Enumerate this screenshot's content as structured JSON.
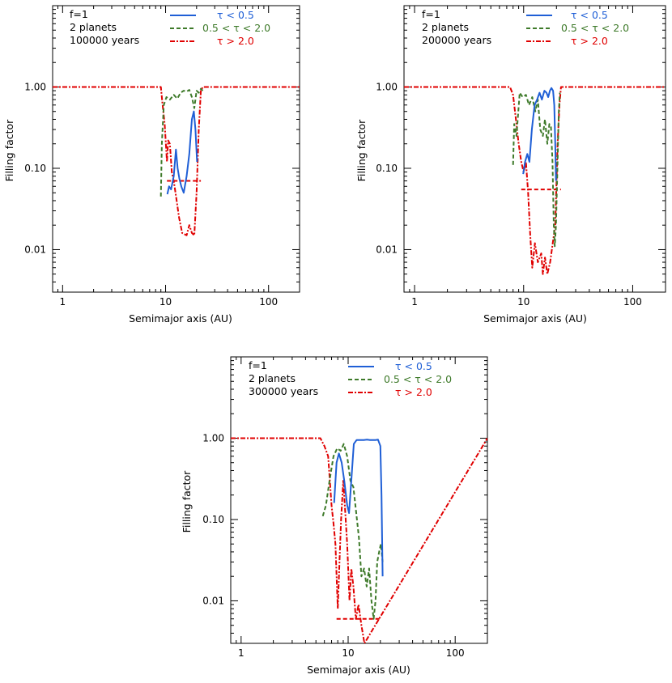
{
  "chart_data": [
    {
      "type": "line",
      "annotation": [
        "f=1",
        "2 planets",
        "100000 years"
      ],
      "xlabel": "Semimajor axis (AU)",
      "ylabel": "Filling factor",
      "xscale": "log",
      "yscale": "log",
      "xlim": [
        0.8,
        200
      ],
      "ylim": [
        0.003,
        10
      ],
      "xticks": [
        {
          "v": 1,
          "label": "1"
        },
        {
          "v": 10,
          "label": "10"
        },
        {
          "v": 100,
          "label": "100"
        }
      ],
      "yticks": [
        {
          "v": 1,
          "label": "1.00"
        },
        {
          "v": 0.1,
          "label": "0.10"
        },
        {
          "v": 0.01,
          "label": "0.01"
        }
      ],
      "legend": {
        "position": "top-right",
        "entries": [
          {
            "name": "τ < 0.5",
            "color": "#1f5fd6",
            "style": "solid"
          },
          {
            "name": "0.5 < τ < 2.0",
            "color": "#3e7a2a",
            "style": "dashed"
          },
          {
            "name": "τ > 2.0",
            "color": "#e00000",
            "style": "dashdot"
          }
        ]
      },
      "series": [
        {
          "name": "τ > 2.0",
          "color": "#e00000",
          "style": "dashdot",
          "points": [
            [
              0.8,
              1
            ],
            [
              9.0,
              1
            ],
            [
              9.3,
              0.65
            ],
            [
              9.8,
              0.35
            ],
            [
              10.3,
              0.12
            ],
            [
              10.6,
              0.22
            ],
            [
              11.0,
              0.2
            ],
            [
              11.5,
              0.09
            ],
            [
              12,
              0.07
            ],
            [
              12.8,
              0.04
            ],
            [
              13.5,
              0.025
            ],
            [
              14.5,
              0.016
            ],
            [
              16,
              0.015
            ],
            [
              17,
              0.02
            ],
            [
              18,
              0.016
            ],
            [
              19,
              0.015
            ],
            [
              20,
              0.05
            ],
            [
              21,
              0.3
            ],
            [
              22,
              0.9
            ],
            [
              23,
              1
            ],
            [
              200,
              1
            ]
          ]
        },
        {
          "name": "τ > 2.0 (threshold)",
          "color": "#e00000",
          "style": "dashed",
          "points": [
            [
              10.3,
              0.07
            ],
            [
              22,
              0.07
            ]
          ]
        },
        {
          "name": "0.5 < τ < 2.0",
          "color": "#3e7a2a",
          "style": "dashed",
          "points": [
            [
              9.0,
              0.045
            ],
            [
              9.2,
              0.2
            ],
            [
              9.6,
              0.6
            ],
            [
              10.2,
              0.75
            ],
            [
              11,
              0.7
            ],
            [
              12,
              0.8
            ],
            [
              13,
              0.72
            ],
            [
              14,
              0.85
            ],
            [
              15,
              0.9
            ],
            [
              16,
              0.88
            ],
            [
              17,
              0.92
            ],
            [
              18,
              0.75
            ],
            [
              19,
              0.55
            ],
            [
              20,
              0.9
            ],
            [
              21,
              0.85
            ],
            [
              22,
              0.95
            ],
            [
              23,
              0.9
            ]
          ]
        },
        {
          "name": "τ < 0.5",
          "color": "#1f5fd6",
          "style": "solid",
          "points": [
            [
              10.4,
              0.048
            ],
            [
              10.8,
              0.06
            ],
            [
              11.3,
              0.055
            ],
            [
              12,
              0.08
            ],
            [
              12.6,
              0.17
            ],
            [
              13.1,
              0.1
            ],
            [
              13.6,
              0.075
            ],
            [
              14.2,
              0.06
            ],
            [
              15,
              0.05
            ],
            [
              16,
              0.08
            ],
            [
              17,
              0.15
            ],
            [
              18,
              0.4
            ],
            [
              18.8,
              0.5
            ],
            [
              19.5,
              0.3
            ],
            [
              20.2,
              0.12
            ]
          ]
        }
      ]
    },
    {
      "type": "line",
      "annotation": [
        "f=1",
        "2 planets",
        "200000 years"
      ],
      "xlabel": "Semimajor axis (AU)",
      "ylabel": "Filling factor",
      "xscale": "log",
      "yscale": "log",
      "xlim": [
        0.8,
        200
      ],
      "ylim": [
        0.003,
        10
      ],
      "xticks": [
        {
          "v": 1,
          "label": "1"
        },
        {
          "v": 10,
          "label": "10"
        },
        {
          "v": 100,
          "label": "100"
        }
      ],
      "yticks": [
        {
          "v": 1,
          "label": "1.00"
        },
        {
          "v": 0.1,
          "label": "0.10"
        },
        {
          "v": 0.01,
          "label": "0.01"
        }
      ],
      "legend": {
        "position": "top-right",
        "entries": [
          {
            "name": "τ < 0.5",
            "color": "#1f5fd6",
            "style": "solid"
          },
          {
            "name": "0.5 < τ < 2.0",
            "color": "#3e7a2a",
            "style": "dashed"
          },
          {
            "name": "τ > 2.0",
            "color": "#e00000",
            "style": "dashdot"
          }
        ]
      },
      "series": [
        {
          "name": "τ > 2.0",
          "color": "#e00000",
          "style": "dashdot",
          "points": [
            [
              0.8,
              1
            ],
            [
              7.5,
              1
            ],
            [
              8.0,
              0.8
            ],
            [
              8.5,
              0.4
            ],
            [
              9.0,
              0.2
            ],
            [
              9.5,
              0.12
            ],
            [
              10.0,
              0.09
            ],
            [
              10.5,
              0.12
            ],
            [
              11.0,
              0.05
            ],
            [
              11.5,
              0.015
            ],
            [
              12.0,
              0.006
            ],
            [
              12.7,
              0.012
            ],
            [
              13.5,
              0.007
            ],
            [
              14.5,
              0.009
            ],
            [
              15,
              0.005
            ],
            [
              15.7,
              0.008
            ],
            [
              16.5,
              0.005
            ],
            [
              17.5,
              0.007
            ],
            [
              18.5,
              0.012
            ],
            [
              19.5,
              0.02
            ],
            [
              20.5,
              0.2
            ],
            [
              21.3,
              0.6
            ],
            [
              22,
              1
            ],
            [
              200,
              1
            ]
          ]
        },
        {
          "name": "τ > 2.0 (threshold)",
          "color": "#e00000",
          "style": "dashed",
          "points": [
            [
              9.5,
              0.055
            ],
            [
              22,
              0.055
            ]
          ]
        },
        {
          "name": "0.5 < τ < 2.0",
          "color": "#3e7a2a",
          "style": "dashed",
          "points": [
            [
              8.0,
              0.11
            ],
            [
              8.2,
              0.35
            ],
            [
              8.6,
              0.25
            ],
            [
              9.2,
              0.85
            ],
            [
              9.8,
              0.75
            ],
            [
              10.5,
              0.8
            ],
            [
              11.2,
              0.6
            ],
            [
              12,
              0.75
            ],
            [
              12.8,
              0.5
            ],
            [
              13.5,
              0.7
            ],
            [
              14.2,
              0.3
            ],
            [
              15,
              0.25
            ],
            [
              15.7,
              0.4
            ],
            [
              16.5,
              0.2
            ],
            [
              17.2,
              0.35
            ],
            [
              17.8,
              0.32
            ],
            [
              18.4,
              0.12
            ],
            [
              18.9,
              0.02
            ],
            [
              19.3,
              0.011
            ],
            [
              19.8,
              0.02
            ],
            [
              20.4,
              0.1
            ],
            [
              21,
              0.5
            ],
            [
              21.5,
              0.85
            ]
          ]
        },
        {
          "name": "τ < 0.5",
          "color": "#1f5fd6",
          "style": "solid",
          "points": [
            [
              9.9,
              0.085
            ],
            [
              10.3,
              0.12
            ],
            [
              10.8,
              0.15
            ],
            [
              11.3,
              0.12
            ],
            [
              11.9,
              0.3
            ],
            [
              12.6,
              0.6
            ],
            [
              13.3,
              0.7
            ],
            [
              14,
              0.85
            ],
            [
              14.7,
              0.7
            ],
            [
              15.5,
              0.9
            ],
            [
              16.2,
              0.85
            ],
            [
              16.8,
              0.75
            ],
            [
              17.4,
              0.9
            ],
            [
              18,
              0.97
            ],
            [
              18.6,
              0.9
            ],
            [
              19.1,
              0.6
            ],
            [
              19.5,
              0.2
            ],
            [
              19.8,
              0.07
            ]
          ]
        }
      ]
    },
    {
      "type": "line",
      "annotation": [
        "f=1",
        "2 planets",
        "300000 years"
      ],
      "xlabel": "Semimajor axis (AU)",
      "ylabel": "Filling factor",
      "xscale": "log",
      "yscale": "log",
      "xlim": [
        0.8,
        200
      ],
      "ylim": [
        0.003,
        10
      ],
      "xticks": [
        {
          "v": 1,
          "label": "1"
        },
        {
          "v": 10,
          "label": "10"
        },
        {
          "v": 100,
          "label": "100"
        }
      ],
      "yticks": [
        {
          "v": 1,
          "label": "1.00"
        },
        {
          "v": 0.1,
          "label": "0.10"
        },
        {
          "v": 0.01,
          "label": "0.01"
        }
      ],
      "legend": {
        "position": "top-right",
        "entries": [
          {
            "name": "τ < 0.5",
            "color": "#1f5fd6",
            "style": "solid"
          },
          {
            "name": "0.5 < τ < 2.0",
            "color": "#3e7a2a",
            "style": "dashed"
          },
          {
            "name": "τ > 2.0",
            "color": "#e00000",
            "style": "dashdot"
          }
        ]
      },
      "series": [
        {
          "name": "τ > 2.0",
          "color": "#e00000",
          "style": "dashdot",
          "points": [
            [
              0.8,
              1
            ],
            [
              5.5,
              1
            ],
            [
              6.0,
              0.8
            ],
            [
              6.5,
              0.6
            ],
            [
              7.0,
              0.15
            ],
            [
              7.3,
              0.09
            ],
            [
              7.6,
              0.05
            ],
            [
              8.0,
              0.008
            ],
            [
              8.3,
              0.03
            ],
            [
              8.6,
              0.1
            ],
            [
              9.0,
              0.3
            ],
            [
              9.4,
              0.12
            ],
            [
              9.8,
              0.05
            ],
            [
              10.3,
              0.01
            ],
            [
              10.7,
              0.025
            ],
            [
              11.2,
              0.015
            ],
            [
              11.8,
              0.006
            ],
            [
              12.5,
              0.009
            ],
            [
              13.3,
              0.005
            ],
            [
              14.2,
              0.003
            ],
            [
              200,
              1
            ]
          ]
        },
        {
          "name": "τ > 2.0 (threshold)",
          "color": "#e00000",
          "style": "dashed",
          "points": [
            [
              7.8,
              0.006
            ],
            [
              20,
              0.006
            ]
          ]
        },
        {
          "name": "0.5 < τ < 2.0",
          "color": "#3e7a2a",
          "style": "dashed",
          "points": [
            [
              5.8,
              0.11
            ],
            [
              6.2,
              0.15
            ],
            [
              6.7,
              0.3
            ],
            [
              7.3,
              0.6
            ],
            [
              7.9,
              0.75
            ],
            [
              8.5,
              0.7
            ],
            [
              9.1,
              0.85
            ],
            [
              9.8,
              0.6
            ],
            [
              10.5,
              0.3
            ],
            [
              11.2,
              0.25
            ],
            [
              11.9,
              0.12
            ],
            [
              12.6,
              0.06
            ],
            [
              13.3,
              0.02
            ],
            [
              14.1,
              0.025
            ],
            [
              14.9,
              0.015
            ],
            [
              15.7,
              0.025
            ],
            [
              16.5,
              0.01
            ],
            [
              17.3,
              0.006
            ],
            [
              18,
              0.01
            ],
            [
              18.7,
              0.03
            ],
            [
              19.5,
              0.04
            ],
            [
              20.2,
              0.05
            ],
            [
              21,
              0.03
            ]
          ]
        },
        {
          "name": "τ < 0.5",
          "color": "#1f5fd6",
          "style": "solid",
          "points": [
            [
              7.4,
              0.16
            ],
            [
              7.8,
              0.5
            ],
            [
              8.2,
              0.65
            ],
            [
              8.7,
              0.5
            ],
            [
              9.2,
              0.3
            ],
            [
              9.8,
              0.15
            ],
            [
              10.2,
              0.12
            ],
            [
              10.7,
              0.3
            ],
            [
              11.3,
              0.85
            ],
            [
              12,
              0.95
            ],
            [
              13,
              0.95
            ],
            [
              14,
              0.95
            ],
            [
              15,
              0.96
            ],
            [
              16,
              0.95
            ],
            [
              17,
              0.95
            ],
            [
              18,
              0.95
            ],
            [
              19,
              0.96
            ],
            [
              20,
              0.8
            ],
            [
              20.5,
              0.2
            ],
            [
              21,
              0.02
            ]
          ]
        }
      ]
    }
  ]
}
